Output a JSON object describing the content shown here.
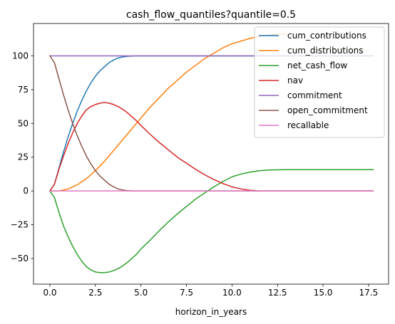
{
  "chart_data": {
    "type": "line",
    "title": "cash_flow_quantiles?quantile=0.5",
    "xlabel": "horizon_in_years",
    "ylabel": "",
    "xlim": [
      -0.9,
      18.6
    ],
    "ylim": [
      -69,
      124
    ],
    "xticks": [
      0.0,
      2.5,
      5.0,
      7.5,
      10.0,
      12.5,
      15.0,
      17.5
    ],
    "xtick_labels": [
      "0.0",
      "2.5",
      "5.0",
      "7.5",
      "10.0",
      "12.5",
      "15.0",
      "17.5"
    ],
    "yticks": [
      -50,
      -25,
      0,
      25,
      50,
      75,
      100
    ],
    "ytick_labels": [
      "−50",
      "−25",
      "0",
      "25",
      "50",
      "75",
      "100"
    ],
    "grid": false,
    "legend_position": "top-right",
    "series": [
      {
        "name": "cum_contributions",
        "color": "#1f77b4",
        "x": [
          0,
          0.25,
          0.5,
          0.75,
          1.0,
          1.25,
          1.5,
          1.75,
          2.0,
          2.25,
          2.5,
          2.75,
          3.0,
          3.25,
          3.5,
          3.75,
          4.0,
          4.25,
          4.5,
          4.75,
          5.0,
          6,
          8,
          10,
          12,
          14,
          16,
          17.75
        ],
        "y": [
          0,
          5,
          17,
          29,
          40,
          50,
          59,
          67,
          74,
          80,
          85,
          89,
          92,
          95,
          97,
          98.5,
          99.3,
          99.7,
          99.9,
          100,
          100,
          100,
          100,
          100,
          100,
          100,
          100,
          100
        ]
      },
      {
        "name": "cum_distributions",
        "color": "#ff7f0e",
        "x": [
          0,
          0.5,
          1.0,
          1.5,
          2.0,
          2.5,
          3.0,
          3.5,
          4.0,
          4.5,
          5.0,
          5.5,
          6.0,
          6.5,
          7.0,
          7.5,
          8.0,
          8.5,
          9.0,
          9.5,
          10.0,
          10.5,
          11.0,
          11.5,
          12.0,
          12.5,
          13.0
        ],
        "y": [
          0,
          0,
          1.5,
          4.5,
          9,
          15,
          22,
          30,
          38,
          46,
          54,
          62,
          69,
          76,
          82,
          88,
          93,
          98,
          102,
          106,
          109,
          111,
          113,
          114.5,
          115.5,
          116,
          116
        ]
      },
      {
        "name": "net_cash_flow",
        "color": "#2ca02c",
        "x": [
          0,
          0.25,
          0.5,
          0.75,
          1.0,
          1.25,
          1.5,
          1.75,
          2.0,
          2.25,
          2.5,
          2.75,
          3.0,
          3.25,
          3.5,
          3.75,
          4.0,
          4.25,
          4.5,
          4.75,
          5.0,
          5.5,
          6.0,
          6.5,
          7.0,
          7.5,
          8.0,
          8.5,
          9.0,
          9.5,
          10.0,
          10.5,
          11.0,
          11.5,
          12.0,
          13.0,
          14.0,
          15.0,
          16.0,
          17.0,
          17.75
        ],
        "y": [
          0,
          -5,
          -16,
          -26,
          -34,
          -41,
          -47,
          -52,
          -56,
          -58.5,
          -60,
          -60.5,
          -60.5,
          -60,
          -59,
          -57.5,
          -55.5,
          -53,
          -50,
          -47,
          -43,
          -36.5,
          -29.5,
          -23,
          -17,
          -11.5,
          -6,
          -1.5,
          3,
          7,
          10.5,
          12.5,
          14,
          15,
          15.5,
          15.8,
          15.8,
          15.8,
          15.8,
          15.8,
          15.8
        ]
      },
      {
        "name": "nav",
        "color": "#d62728",
        "x": [
          0,
          0.25,
          0.5,
          0.75,
          1.0,
          1.25,
          1.5,
          1.75,
          2.0,
          2.25,
          2.5,
          2.75,
          3.0,
          3.25,
          3.5,
          3.75,
          4.0,
          4.25,
          4.5,
          4.75,
          5.0,
          5.5,
          6.0,
          6.5,
          7.0,
          7.5,
          8.0,
          8.5,
          9.0,
          9.5,
          10.0,
          10.5,
          11.0,
          11.5,
          12.0,
          13.0,
          14.0,
          15.0,
          16.0,
          17.0,
          17.75
        ],
        "y": [
          0,
          5,
          16,
          26,
          35,
          43,
          50,
          55.5,
          60,
          62.5,
          64,
          65,
          65.5,
          65,
          64,
          62.5,
          60.5,
          58,
          55,
          52,
          48.5,
          42,
          36,
          30.5,
          25,
          20.5,
          16,
          12,
          8.5,
          5.5,
          3,
          1.5,
          0.5,
          0,
          0,
          0,
          0,
          0,
          0,
          0,
          0
        ]
      },
      {
        "name": "commitment",
        "color": "#9467bd",
        "x": [
          0,
          2,
          4,
          6,
          8,
          10,
          12,
          14,
          16,
          17.75
        ],
        "y": [
          100,
          100,
          100,
          100,
          100,
          100,
          100,
          100,
          100,
          100
        ]
      },
      {
        "name": "open_commitment",
        "color": "#8c564b",
        "x": [
          0,
          0.25,
          0.5,
          0.75,
          1.0,
          1.25,
          1.5,
          1.75,
          2.0,
          2.25,
          2.5,
          2.75,
          3.0,
          3.25,
          3.5,
          3.75,
          4.0,
          4.25,
          4.5,
          4.75,
          5.0,
          6,
          8,
          10,
          12,
          14,
          16,
          17.75
        ],
        "y": [
          100,
          95,
          83,
          71,
          60,
          50,
          41,
          33,
          26,
          20,
          15,
          11,
          8,
          5,
          3,
          1.5,
          0.7,
          0.3,
          0.1,
          0,
          0,
          0,
          0,
          0,
          0,
          0,
          0,
          0
        ]
      },
      {
        "name": "recallable",
        "color": "#e377c2",
        "x": [
          0,
          2,
          4,
          6,
          8,
          10,
          12,
          14,
          16,
          17.75
        ],
        "y": [
          0,
          0,
          0,
          0,
          0,
          0,
          0,
          0,
          0,
          0
        ]
      }
    ]
  }
}
